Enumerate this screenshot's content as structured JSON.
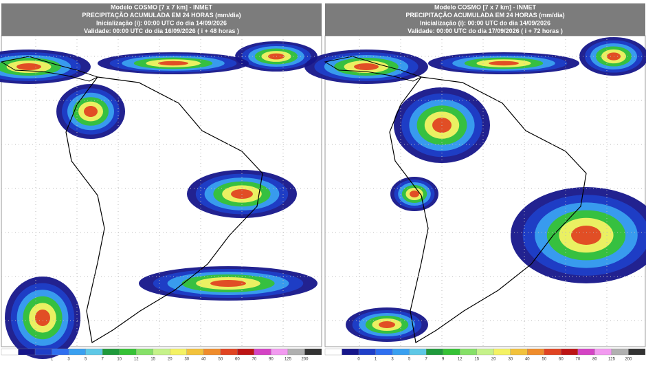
{
  "panels": [
    {
      "header": [
        "Modelo COSMO [7 x 7 km] - INMET",
        "PRECIPITAÇÃO ACUMULADA EM 24 HORAS (mm/dia)",
        "Inicialização (i): 00:00 UTC do dia 14/09/2026",
        "Validade: 00:00 UTC do dia 16/09/2026 ( i + 48 horas )"
      ],
      "scale_labels": [
        "1",
        "3",
        "5",
        "7",
        "10",
        "12",
        "15",
        "20",
        "30",
        "40",
        "50",
        "60",
        "70",
        "90",
        "125",
        "200"
      ]
    },
    {
      "header": [
        "Modelo COSMO [7 x 7 km] - INMET",
        "PRECIPITAÇÃO ACUMULADA EM 24 HORAS (mm/dia)",
        "Inicialização (i): 00:00 UTC do dia 14/09/2026",
        "Validade: 00:00 UTC do dia 17/09/2026 ( i + 72 horas )"
      ],
      "scale_labels": [
        "0",
        "1",
        "3",
        "5",
        "7",
        "9",
        "12",
        "15",
        "20",
        "30",
        "40",
        "50",
        "60",
        "70",
        "80",
        "125",
        "200"
      ]
    }
  ],
  "scale_colors": [
    "#ffffff",
    "#16168a",
    "#1f3fc8",
    "#2f6ff0",
    "#3aa0f0",
    "#5ec8e6",
    "#1f9a3c",
    "#36c236",
    "#86e068",
    "#c6f28a",
    "#f4f264",
    "#f2c23c",
    "#ef8c2c",
    "#e04422",
    "#bd1414",
    "#d444c4",
    "#f29af0",
    "#b0b0b0",
    "#333333"
  ]
}
